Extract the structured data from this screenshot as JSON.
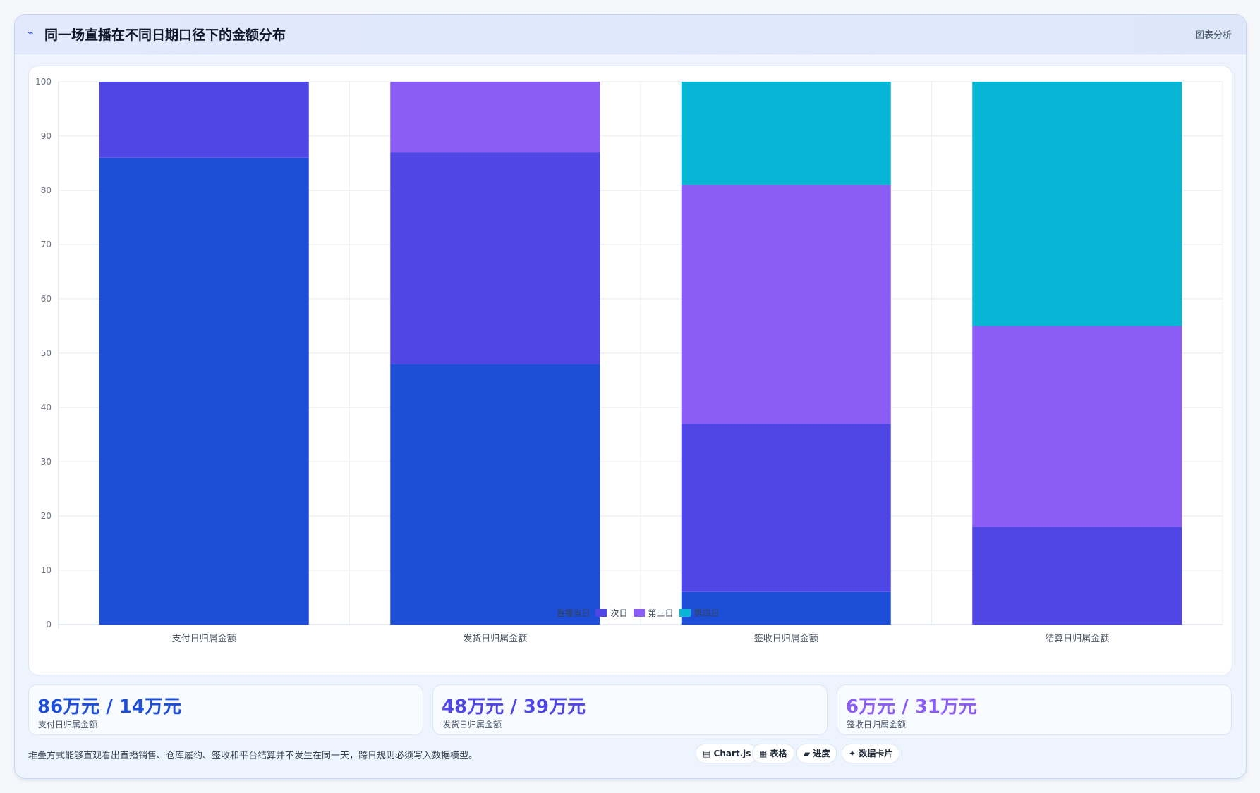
{
  "header": {
    "icon": "trend-line-icon",
    "title": "同一场直播在不同日期口径下的金额分布",
    "tag": "图表分析"
  },
  "chart_data": {
    "type": "bar",
    "stacked": true,
    "categories": [
      "支付日归属金额",
      "发货日归属金额",
      "签收日归属金额",
      "结算日归属金额"
    ],
    "series": [
      {
        "name": "直播当日",
        "color": "#1d4ed8",
        "values": [
          86,
          48,
          6,
          0
        ]
      },
      {
        "name": "次日",
        "color": "#4f46e5",
        "values": [
          14,
          39,
          31,
          18
        ]
      },
      {
        "name": "第三日",
        "color": "#8b5cf6",
        "values": [
          0,
          13,
          44,
          37
        ]
      },
      {
        "name": "第四日",
        "color": "#06b6d4",
        "values": [
          0,
          0,
          19,
          45
        ]
      }
    ],
    "ylim": [
      0,
      100
    ],
    "yticks": [
      0,
      10,
      20,
      30,
      40,
      50,
      60,
      70,
      80,
      90,
      100
    ],
    "grid": true,
    "legend_position": "bottom"
  },
  "stats": [
    {
      "value": "86万元 / 14万元",
      "label": "支付日归属金额",
      "color": "#1d4ed8"
    },
    {
      "value": "48万元 / 39万元",
      "label": "发货日归属金额",
      "color": "#4f46e5"
    },
    {
      "value": "6万元 / 31万元",
      "label": "签收日归属金额",
      "color": "#8b5cf6"
    }
  ],
  "footnote": "堆叠方式能够直观看出直播销售、仓库履约、签收和平台结算并不发生在同一天，跨日规则必须写入数据模型。",
  "chips": [
    {
      "label": "▤ Chart.js",
      "icon": "chart-icon"
    },
    {
      "label": "▦ 表格",
      "icon": "table-icon"
    },
    {
      "label": "▰ 进度",
      "icon": "progress-icon"
    },
    {
      "label": "✦ 数据卡片",
      "icon": "card-icon"
    }
  ]
}
